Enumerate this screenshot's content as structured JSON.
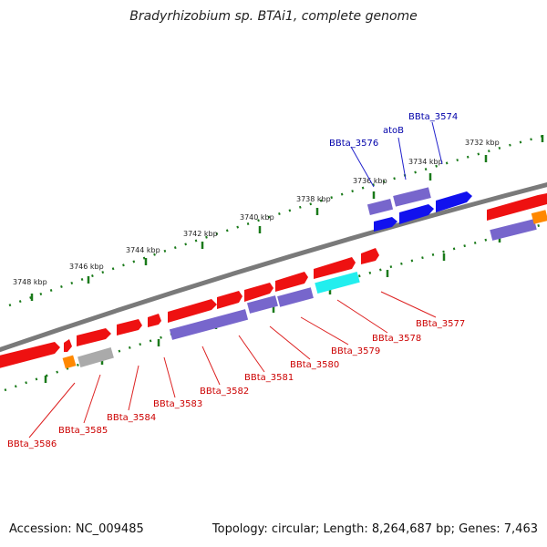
{
  "title": "Bradyrhizobium sp. BTAi1, complete genome",
  "accession_text": "Accession: NC_009485",
  "topology_text": "Topology: circular; Length: 8,264,687 bp; Genes: 7,463",
  "colors": {
    "backbone": "#808080",
    "ticks": "#1a7a1a",
    "forward_label": "#0000aa",
    "reverse_label": "#cc0000",
    "red_gene": "#ee1111",
    "purple_gene": "#7766cc",
    "blue_gene": "#1111ee",
    "cyan_gene": "#22eeee",
    "orange_gene": "#ff8800",
    "gray_gene": "#aaaaaa"
  },
  "scale_labels": [
    "3732 kbp",
    "3734 kbp",
    "3736 kbp",
    "3738 kbp",
    "3740 kbp",
    "3742 kbp",
    "3744 kbp",
    "3746 kbp",
    "3748 kbp"
  ],
  "forward_labels": [
    "BBta_3574",
    "atoB",
    "BBta_3576"
  ],
  "reverse_labels": [
    "BBta_3577",
    "BBta_3578",
    "BBta_3579",
    "BBta_3580",
    "BBta_3581",
    "BBta_3582",
    "BBta_3583",
    "BBta_3584",
    "BBta_3585",
    "BBta_3586"
  ]
}
